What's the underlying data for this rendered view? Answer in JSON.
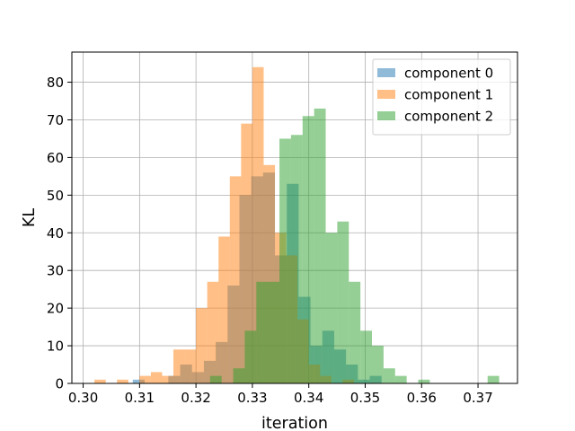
{
  "chart_data": {
    "type": "histogram",
    "title": "",
    "xlabel": "iteration",
    "ylabel": "KL",
    "xlim": [
      0.298,
      0.377
    ],
    "ylim": [
      0,
      88
    ],
    "xticks": [
      0.3,
      0.31,
      0.32,
      0.33,
      0.34,
      0.35,
      0.36,
      0.37
    ],
    "xtick_labels": [
      "0.30",
      "0.31",
      "0.32",
      "0.33",
      "0.34",
      "0.35",
      "0.36",
      "0.37"
    ],
    "yticks": [
      0,
      10,
      20,
      30,
      40,
      50,
      60,
      70,
      80
    ],
    "ytick_labels": [
      "0",
      "10",
      "20",
      "30",
      "40",
      "50",
      "60",
      "70",
      "80"
    ],
    "grid": true,
    "legend_position": "top-right",
    "series": [
      {
        "name": "component 0",
        "color": "#1f77b4",
        "alpha": 0.5,
        "bin_start": 0.3088,
        "bin_width": 0.0021,
        "counts": [
          1,
          0,
          0,
          2,
          5,
          3,
          6,
          11,
          26,
          50,
          55,
          56,
          34,
          53,
          23,
          10,
          14,
          9,
          5,
          1,
          2
        ]
      },
      {
        "name": "component 1",
        "color": "#ff7f0e",
        "alpha": 0.5,
        "bin_start": 0.302,
        "bin_width": 0.002,
        "counts": [
          1,
          0,
          1,
          0,
          2,
          3,
          2,
          9,
          9,
          20,
          27,
          39,
          55,
          69,
          84,
          58,
          40,
          34,
          17,
          5,
          2,
          0,
          1
        ]
      },
      {
        "name": "component 2",
        "color": "#2ca02c",
        "alpha": 0.5,
        "bin_start": 0.3225,
        "bin_width": 0.00205,
        "counts": [
          2,
          0,
          4,
          14,
          27,
          27,
          65,
          66,
          71,
          73,
          40,
          43,
          27,
          14,
          10,
          4,
          2,
          0,
          1,
          0,
          0,
          0,
          0,
          0,
          2
        ]
      }
    ]
  }
}
